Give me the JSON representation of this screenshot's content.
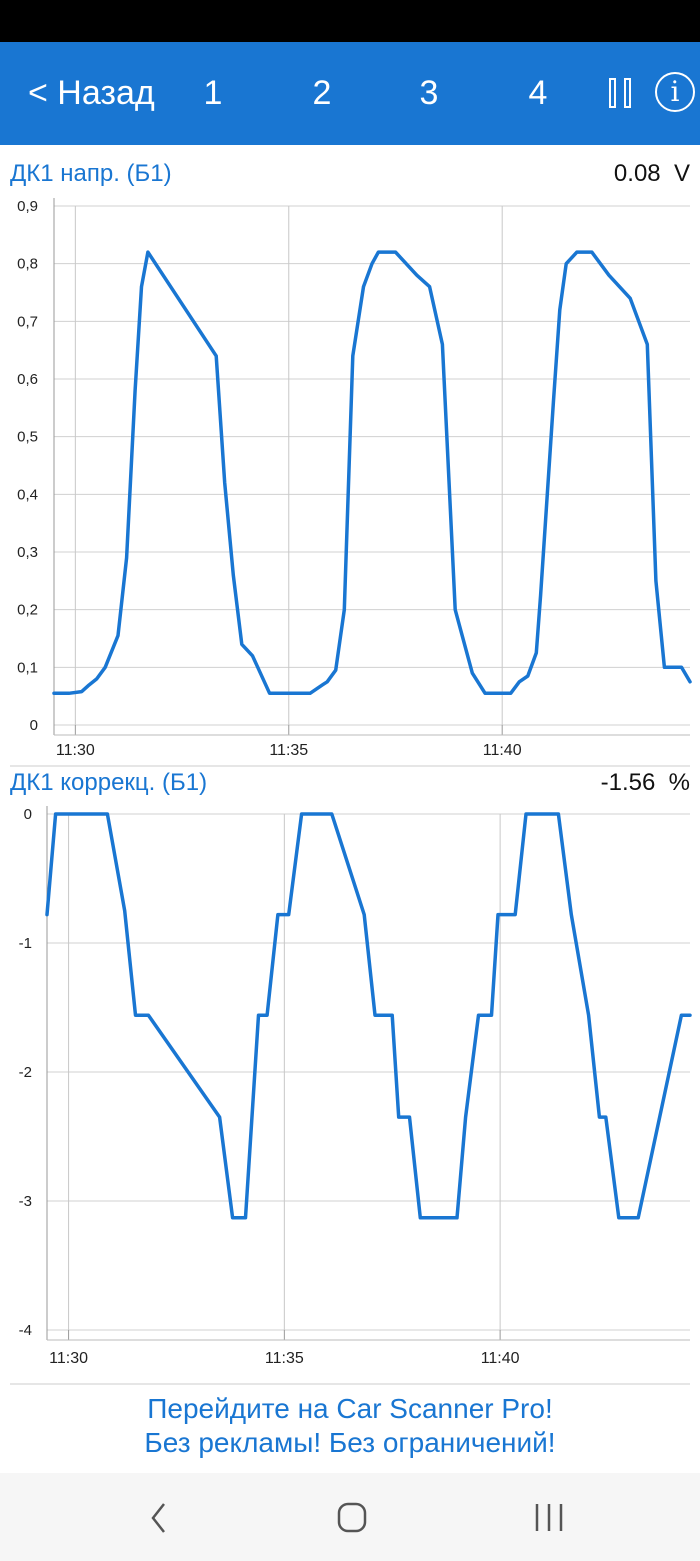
{
  "app_bar": {
    "back_label": "< Назад",
    "tabs": [
      "1",
      "2",
      "3",
      "4"
    ],
    "pause_icon": "pause-icon",
    "info_icon": "info-icon",
    "info_glyph": "i",
    "color": "#1976d2"
  },
  "charts": [
    {
      "title": "ДК1 напр. (Б1)",
      "value": "0.08",
      "unit": "V",
      "line_color": "#1976d2"
    },
    {
      "title": "ДК1 коррекц. (Б1)",
      "value": "-1.56",
      "unit": "%",
      "line_color": "#1976d2"
    }
  ],
  "chart_data": [
    {
      "type": "line",
      "title": "ДК1 напр. (Б1)",
      "xlabel": "",
      "ylabel": "",
      "x_range_min": [
        29.5,
        44.4
      ],
      "ylim": [
        0,
        0.9
      ],
      "y_ticks": [
        "0",
        "0,1",
        "0,2",
        "0,3",
        "0,4",
        "0,5",
        "0,6",
        "0,7",
        "0,8",
        "0,9"
      ],
      "x_ticks": [
        {
          "value": 30,
          "label": "11:30"
        },
        {
          "value": 35,
          "label": "11:35"
        },
        {
          "value": 40,
          "label": "11:40"
        }
      ],
      "grid": true,
      "series": [
        {
          "x": [
            29.5,
            29.65,
            29.85,
            30.15,
            30.3,
            30.5,
            30.7,
            31.0,
            31.2,
            31.4,
            31.55,
            31.7,
            33.3,
            33.5,
            33.7,
            33.9,
            34.15,
            34.55,
            35.5,
            35.8,
            35.9,
            36.1,
            36.3,
            36.5,
            36.75,
            36.95,
            37.1,
            37.3,
            37.5,
            38.0,
            38.3,
            38.6,
            38.9,
            39.3,
            39.6,
            39.9,
            40.2,
            40.4,
            40.6,
            40.8,
            40.9,
            41.2,
            41.35,
            41.5,
            41.75,
            41.95,
            42.1,
            42.3,
            42.5,
            43.0,
            43.4,
            43.6,
            43.8,
            44.2,
            44.4
          ],
          "y": [
            0.055,
            0.055,
            0.055,
            0.058,
            0.068,
            0.08,
            0.1,
            0.155,
            0.29,
            0.58,
            0.76,
            0.82,
            0.64,
            0.42,
            0.26,
            0.14,
            0.12,
            0.055,
            0.055,
            0.07,
            0.075,
            0.095,
            0.2,
            0.64,
            0.76,
            0.8,
            0.82,
            0.82,
            0.82,
            0.78,
            0.76,
            0.66,
            0.2,
            0.09,
            0.055,
            0.055,
            0.055,
            0.075,
            0.085,
            0.125,
            0.225,
            0.56,
            0.72,
            0.8,
            0.82,
            0.82,
            0.82,
            0.8,
            0.78,
            0.74,
            0.66,
            0.25,
            0.1,
            0.1,
            0.075
          ]
        }
      ]
    },
    {
      "type": "line",
      "title": "ДК1 коррекц. (Б1)",
      "xlabel": "",
      "ylabel": "",
      "x_range_min": [
        29.5,
        44.4
      ],
      "ylim": [
        -4,
        0
      ],
      "y_ticks": [
        "-4",
        "-3",
        "-2",
        "-1",
        "0"
      ],
      "x_ticks": [
        {
          "value": 30,
          "label": "11:30"
        },
        {
          "value": 35,
          "label": "11:35"
        },
        {
          "value": 40,
          "label": "11:40"
        }
      ],
      "grid": true,
      "series": [
        {
          "x": [
            29.5,
            29.7,
            30.7,
            30.9,
            31.3,
            31.55,
            31.85,
            33.5,
            33.8,
            34.1,
            34.4,
            34.6,
            34.85,
            35.1,
            35.4,
            35.9,
            36.1,
            36.85,
            37.1,
            37.5,
            37.65,
            37.9,
            38.15,
            38.5,
            39.0,
            39.2,
            39.5,
            39.8,
            39.95,
            40.35,
            40.6,
            41.35,
            41.65,
            42.05,
            42.3,
            42.45,
            42.75,
            43.2,
            44.2,
            44.4
          ],
          "y": [
            -0.78,
            0,
            0,
            0,
            -0.75,
            -1.56,
            -1.56,
            -2.35,
            -3.13,
            -3.13,
            -1.56,
            -1.56,
            -0.78,
            -0.78,
            0,
            0,
            0,
            -0.78,
            -1.56,
            -1.56,
            -2.35,
            -2.35,
            -3.13,
            -3.13,
            -3.13,
            -2.35,
            -1.56,
            -1.56,
            -0.78,
            -0.78,
            0,
            0,
            -0.78,
            -1.56,
            -2.35,
            -2.35,
            -3.13,
            -3.13,
            -1.56,
            -1.56
          ]
        }
      ]
    }
  ],
  "promo": {
    "line1": "Перейдите на Car Scanner Pro!",
    "line2": "Без рекламы! Без ограничений!"
  },
  "nav_bar": {
    "back_icon": "chevron-left-icon",
    "home_icon": "home-icon",
    "recents_icon": "recents-icon"
  }
}
